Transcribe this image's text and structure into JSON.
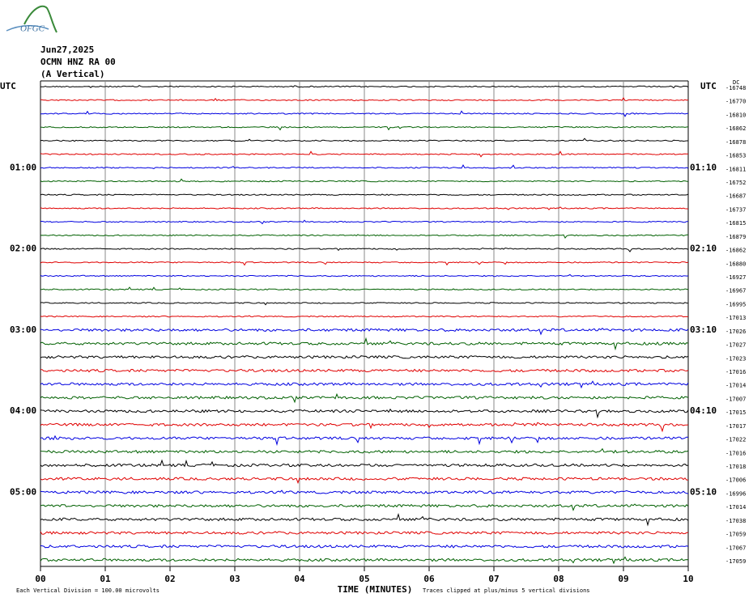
{
  "header": {
    "logo": "OFGC",
    "date": "Jun27,2025",
    "station": "OCMN HNZ RA 00",
    "component": "(A Vertical)",
    "left_label": "UTC",
    "right_label": "UTC",
    "dc_label": "DC"
  },
  "rows": [
    {
      "dc": "-16748"
    },
    {
      "dc": "-16770"
    },
    {
      "dc": "-16810"
    },
    {
      "dc": "-16862"
    },
    {
      "dc": "-16878"
    },
    {
      "dc": "-16853"
    },
    {
      "left": "01:00",
      "right": "01:10",
      "dc": "-16811"
    },
    {
      "dc": "-16752"
    },
    {
      "dc": "-16687"
    },
    {
      "dc": "-16737"
    },
    {
      "dc": "-16815"
    },
    {
      "dc": "-16879"
    },
    {
      "left": "02:00",
      "right": "02:10",
      "dc": "-16862"
    },
    {
      "dc": "-16880"
    },
    {
      "dc": "-16927"
    },
    {
      "dc": "-16967"
    },
    {
      "dc": "-16995"
    },
    {
      "dc": "-17013"
    },
    {
      "left": "03:00",
      "right": "03:10",
      "dc": "-17026"
    },
    {
      "dc": "-17027"
    },
    {
      "dc": "-17023"
    },
    {
      "dc": "-17016"
    },
    {
      "dc": "-17014"
    },
    {
      "dc": "-17007"
    },
    {
      "left": "04:00",
      "right": "04:10",
      "dc": "-17015"
    },
    {
      "dc": "-17017"
    },
    {
      "dc": "-17022"
    },
    {
      "dc": "-17016"
    },
    {
      "dc": "-17018"
    },
    {
      "dc": "-17006"
    },
    {
      "left": "05:00",
      "right": "05:10",
      "dc": "-16996"
    },
    {
      "dc": "-17014"
    },
    {
      "dc": "-17038"
    },
    {
      "dc": "-17059"
    },
    {
      "dc": "-17067"
    },
    {
      "dc": "-17059"
    }
  ],
  "trace_colors": [
    "#000000",
    "#e00000",
    "#0000e0",
    "#006000"
  ],
  "x_axis": {
    "ticks": [
      "00",
      "01",
      "02",
      "03",
      "04",
      "05",
      "06",
      "07",
      "08",
      "09",
      "10"
    ],
    "label": "TIME (MINUTES)"
  },
  "footer": {
    "scale": "Each Vertical Division =  100.00 microvolts",
    "clip": "Traces clipped at plus/minus 5 vertical divisions"
  }
}
